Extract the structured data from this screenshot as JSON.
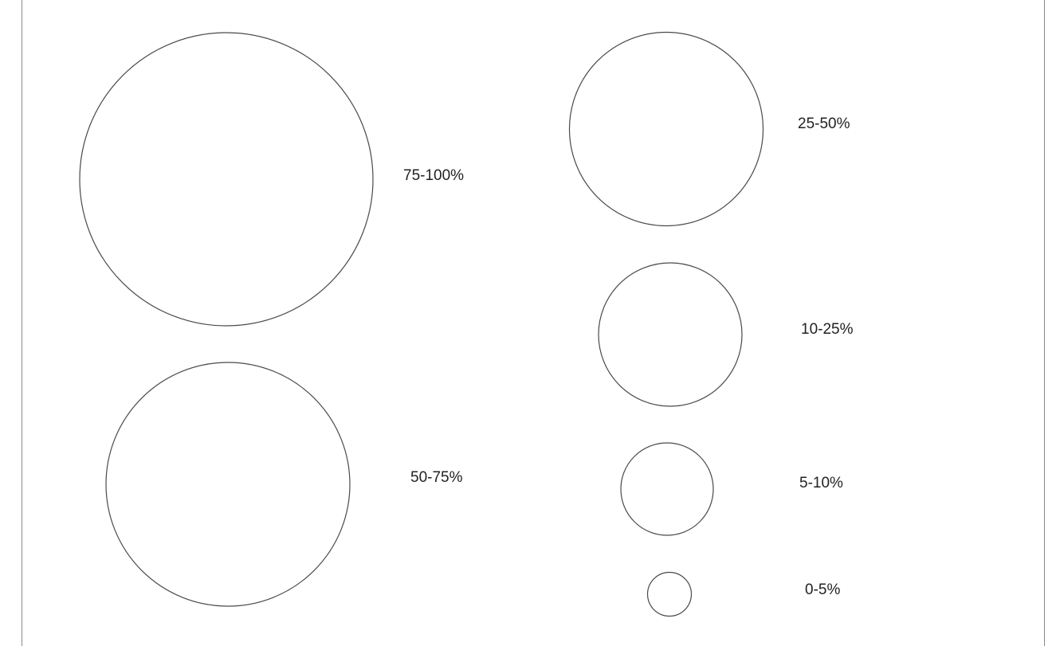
{
  "legend": {
    "items": [
      {
        "label": "75-100%"
      },
      {
        "label": "50-75%"
      },
      {
        "label": "25-50%"
      },
      {
        "label": "10-25%"
      },
      {
        "label": "5-10%"
      },
      {
        "label": "0-5%"
      }
    ]
  },
  "colors": {
    "stroke": "#4a4a4a",
    "background": "#ffffff",
    "text": "#222222"
  }
}
